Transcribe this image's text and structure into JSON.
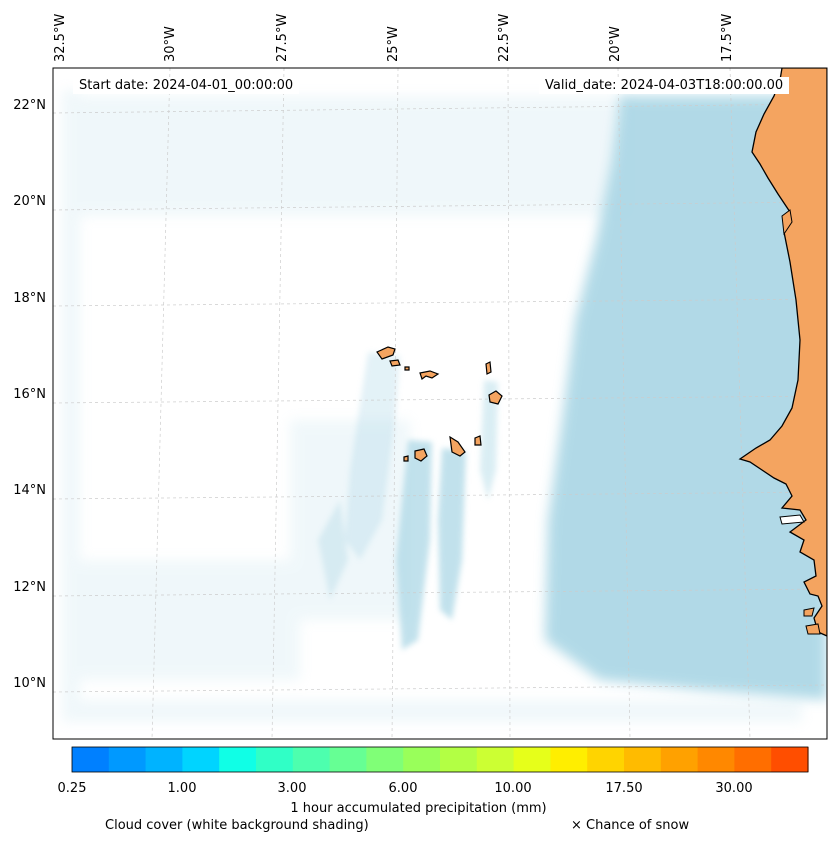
{
  "map": {
    "start_date_text": "Start date: 2024-04-01_00:00:00",
    "valid_date_text": "Valid_date: 2024-04-03T18:00:00.00",
    "longitude_labels": [
      "32.5°W",
      "30°W",
      "27.5°W",
      "25°W",
      "22.5°W",
      "20°W",
      "17.5°W"
    ],
    "latitude_labels": [
      "22°N",
      "20°N",
      "18°N",
      "16°N",
      "14°N",
      "12°N",
      "10°N"
    ],
    "colors": {
      "land": "#f4a460",
      "cloud": "#add8e6",
      "coastline": "#000000",
      "gridline": "#cccccc"
    }
  },
  "colorbar": {
    "colors": [
      "#0080ff",
      "#0099ff",
      "#00b3ff",
      "#00d4ff",
      "#10ffe6",
      "#30ffc6",
      "#4dffae",
      "#66ff94",
      "#80ff77",
      "#99ff5a",
      "#b3ff44",
      "#ccff33",
      "#e6ff1a",
      "#ffee00",
      "#ffd400",
      "#ffbb00",
      "#ffa100",
      "#ff8800",
      "#ff6e00",
      "#ff4e00"
    ],
    "tick_labels": [
      "0.25",
      "1.00",
      "3.00",
      "6.00",
      "10.00",
      "17.50",
      "30.00"
    ],
    "title": "1 hour accumulated precipitation (mm)"
  },
  "legend": {
    "cloud_cover_text": "Cloud cover (white background shading)",
    "snow_text": "× Chance of snow"
  }
}
